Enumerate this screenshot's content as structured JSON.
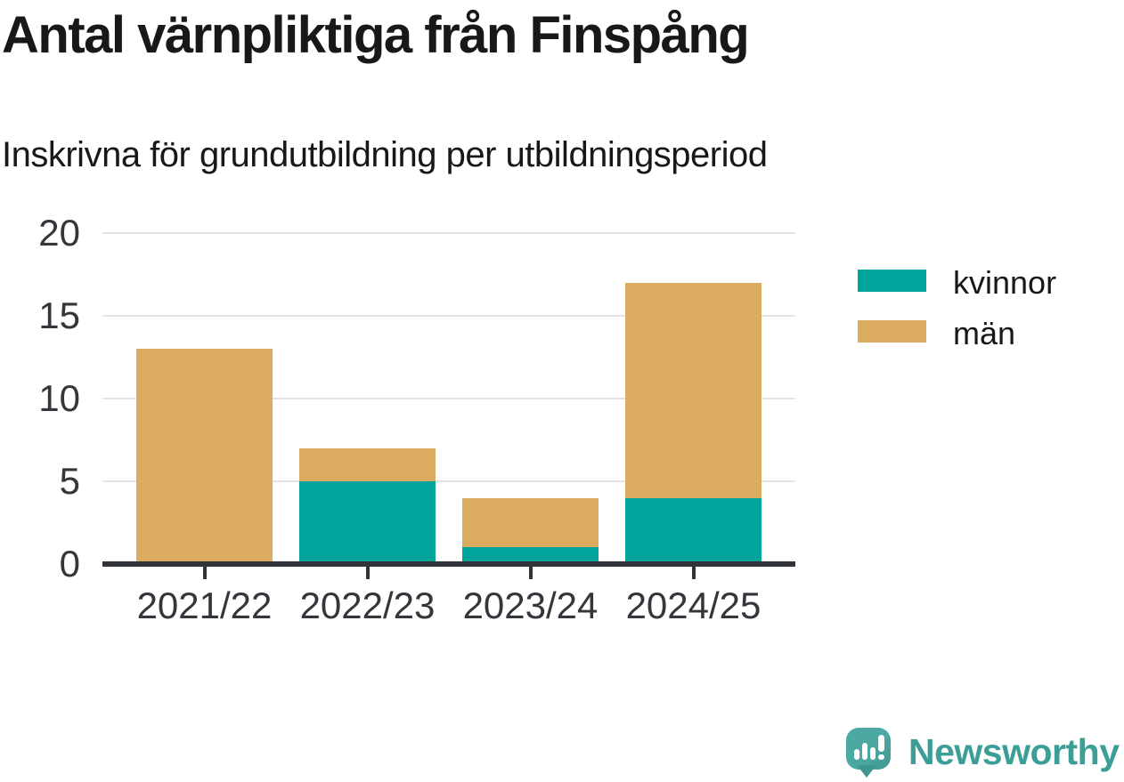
{
  "title": "Antal värnpliktiga från Finspång",
  "subtitle": "Inskrivna för grundutbildning per utbildningsperiod",
  "branding": {
    "name": "Newsworthy",
    "logo_icon": "speech-bubble-bar-chart-exclamation"
  },
  "colors": {
    "kvinnor": "#00A49B",
    "man": "#DBAC5F",
    "grid": "#E3E3E3",
    "axis": "#303338",
    "tick_label": "#33363B",
    "text_dark": "#16181A",
    "brand_teal": "#3B9E97",
    "logo_teal": "#4CA9A2",
    "logo_teal_dark": "#3F968F",
    "background": "#FFFFFF"
  },
  "legend": {
    "items": [
      {
        "label": "kvinnor",
        "color": "#00A49B"
      },
      {
        "label": "män",
        "color": "#DBAC5F"
      }
    ]
  },
  "chart_data": {
    "type": "bar",
    "stacked": true,
    "title": "Antal värnpliktiga från Finspång",
    "subtitle": "Inskrivna för grundutbildning per utbildningsperiod",
    "categories": [
      "2021/22",
      "2022/23",
      "2023/24",
      "2024/25"
    ],
    "series": [
      {
        "name": "kvinnor",
        "color": "#00A49B",
        "values": [
          0,
          5,
          1,
          4
        ]
      },
      {
        "name": "män",
        "color": "#DBAC5F",
        "values": [
          13,
          2,
          3,
          13
        ]
      }
    ],
    "totals": [
      13,
      7,
      4,
      17
    ],
    "xlabel": "",
    "ylabel": "",
    "ylim": [
      0,
      20
    ],
    "yticks": [
      0,
      5,
      10,
      15,
      20
    ],
    "grid": "horizontal",
    "legend_position": "right"
  }
}
